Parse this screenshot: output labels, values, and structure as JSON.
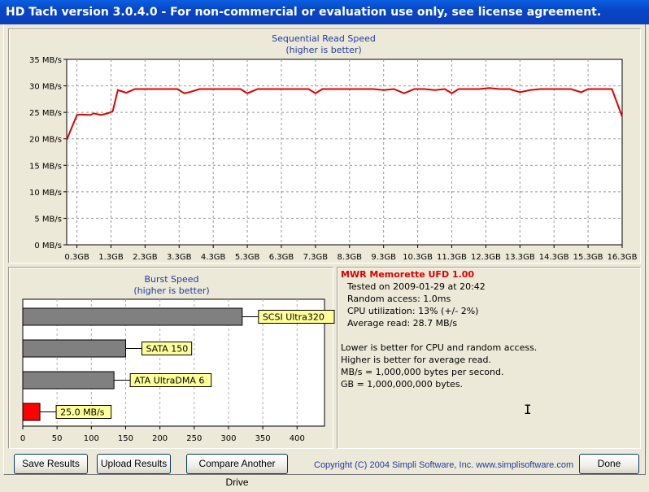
{
  "window": {
    "title": "HD Tach version 3.0.4.0  - For non-commercial or evaluation use only, see license agreement."
  },
  "seq_chart": {
    "title": "Sequential Read Speed",
    "subtitle": "(higher is better)"
  },
  "burst_chart": {
    "title": "Burst Speed",
    "subtitle": "(higher is better)"
  },
  "chart_data": [
    {
      "type": "line",
      "title": "Sequential Read Speed",
      "subtitle": "(higher is better)",
      "ylim": [
        0,
        35
      ],
      "y_ticks": [
        0,
        5,
        10,
        15,
        20,
        25,
        30,
        35
      ],
      "y_tick_labels": [
        "0 MB/s",
        "5 MB/s",
        "10 MB/s",
        "15 MB/s",
        "20 MB/s",
        "25 MB/s",
        "30 MB/s",
        "35 MB/s"
      ],
      "xlim": [
        0,
        16.3
      ],
      "x_ticks": [
        0.3,
        1.3,
        2.3,
        3.3,
        4.3,
        5.3,
        6.3,
        7.3,
        8.3,
        9.3,
        10.3,
        11.3,
        12.3,
        13.3,
        14.3,
        15.3,
        16.3
      ],
      "x_tick_labels": [
        "0.3GB",
        "1.3GB",
        "2.3GB",
        "3.3GB",
        "4.3GB",
        "5.3GB",
        "6.3GB",
        "7.3GB",
        "8.3GB",
        "9.3GB",
        "10.3GB",
        "11.3GB",
        "12.3GB",
        "13.3GB",
        "14.3GB",
        "15.3GB",
        "16.3GB"
      ],
      "grid": true,
      "line_color": "#E00000",
      "series": [
        {
          "x": [
            0,
            0.3,
            0.4,
            0.7,
            0.8,
            1.0,
            1.2,
            1.35,
            1.5,
            1.75,
            2.0,
            2.3,
            2.6,
            2.9,
            3.25,
            3.45,
            3.6,
            3.9,
            4.2,
            4.5,
            4.8,
            5.1,
            5.3,
            5.6,
            5.9,
            6.2,
            6.5,
            6.8,
            7.1,
            7.3,
            7.5,
            7.8,
            8.1,
            8.4,
            8.7,
            9.0,
            9.3,
            9.6,
            9.9,
            10.2,
            10.5,
            10.8,
            11.1,
            11.3,
            11.5,
            11.8,
            12.1,
            12.4,
            12.7,
            13.0,
            13.3,
            13.6,
            13.9,
            14.2,
            14.5,
            14.8,
            15.1,
            15.3,
            15.5,
            15.8,
            16.0,
            16.3
          ],
          "y": [
            19.8,
            24.5,
            24.6,
            24.5,
            24.8,
            24.5,
            24.8,
            25.2,
            29.2,
            28.7,
            29.4,
            29.4,
            29.4,
            29.4,
            29.4,
            28.6,
            28.8,
            29.4,
            29.4,
            29.4,
            29.4,
            29.4,
            28.6,
            29.4,
            29.4,
            29.4,
            29.4,
            29.4,
            29.4,
            28.6,
            29.4,
            29.4,
            29.4,
            29.4,
            29.4,
            29.4,
            29.2,
            29.4,
            28.6,
            29.4,
            29.4,
            29.2,
            29.4,
            28.6,
            29.4,
            29.4,
            29.4,
            29.6,
            29.4,
            29.4,
            28.8,
            29.2,
            29.4,
            29.4,
            29.4,
            29.4,
            28.8,
            29.4,
            29.4,
            29.4,
            29.4,
            24.2
          ]
        }
      ]
    },
    {
      "type": "bar",
      "title": "Burst Speed",
      "subtitle": "(higher is better)",
      "orientation": "horizontal",
      "xlim": [
        0,
        440
      ],
      "x_ticks": [
        0,
        50,
        100,
        150,
        200,
        250,
        300,
        350,
        400
      ],
      "x_tick_labels": [
        "0",
        "50",
        "100",
        "150",
        "200",
        "250",
        "300",
        "350",
        "400"
      ],
      "grid": true,
      "categories": [
        "SCSI Ultra320",
        "SATA 150",
        "ATA UltraDMA 6",
        "25.0 MB/s"
      ],
      "values": [
        320,
        150,
        133,
        25.0
      ],
      "bar_colors": [
        "#808080",
        "#808080",
        "#808080",
        "#FF0000"
      ],
      "label_color": "#FFFF99"
    }
  ],
  "results": {
    "drive_name": "MWR Memorette UFD 1.00",
    "lines": [
      "Tested on 2009-01-29 at 20:42",
      "Random access: 1.0ms",
      "CPU utilization: 13% (+/- 2%)",
      "Average read: 28.7 MB/s"
    ],
    "notes": [
      "Lower is better for CPU and random access.",
      "Higher is better for average read.",
      "MB/s = 1,000,000 bytes per second.",
      "GB = 1,000,000,000 bytes."
    ]
  },
  "buttons": {
    "save": "Save Results",
    "upload": "Upload Results",
    "compare": "Compare Another Drive",
    "done": "Done"
  },
  "footer": {
    "copyright": "Copyright (C) 2004 Simpli Software, Inc. www.simplisoftware.com"
  },
  "colors": {
    "title_bar": "#0A5FE0",
    "line": "#E00000",
    "label_bg": "#FFFF99",
    "plot_bg": "#FFFFFF"
  }
}
